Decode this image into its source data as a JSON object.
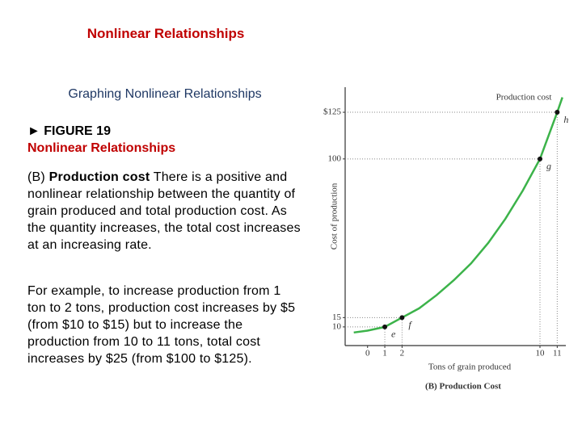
{
  "header": {
    "title": "Nonlinear Relationships",
    "subtitle": "Graphing Nonlinear Relationships"
  },
  "figure": {
    "label": "► FIGURE 19",
    "name": "Nonlinear Relationships"
  },
  "paragraphs": [
    {
      "lead": "(B)",
      "bold": "Production cost",
      "text": "There is a positive and nonlinear relationship between the quantity of grain produced and total production cost. As the quantity increases, the total cost increases at an increasing rate."
    },
    {
      "text": "For example, to increase production from 1 ton to 2 tons, production cost increases by $5 (from $10 to $15) but to increase the production from 10 to 11 tons, total cost increases by $25 (from $100 to $125)."
    }
  ],
  "chart_data": {
    "type": "line",
    "title": "Production cost",
    "caption": "(B) Production Cost",
    "x_label": "Tons of grain produced",
    "y_label": "Cost of production",
    "xlim": [
      -1.3,
      11.5
    ],
    "ylim": [
      0,
      138
    ],
    "xticks": [
      0,
      1,
      2,
      10,
      11
    ],
    "yticks": [
      10,
      15,
      100,
      {
        "value": 125,
        "label": "$125"
      }
    ],
    "x": [
      -0.8,
      0,
      1,
      2,
      3,
      4,
      5,
      6,
      7,
      8,
      9,
      10,
      11,
      11.3
    ],
    "series": [
      {
        "name": "Production cost",
        "color": "#3cb34a",
        "values": [
          7,
          8,
          10,
          15,
          20,
          27,
          35,
          44,
          55,
          68,
          83,
          100,
          125,
          133
        ]
      }
    ],
    "points": {
      "labels": [
        "e",
        "f",
        "g",
        "h"
      ],
      "x": [
        1,
        2,
        10,
        11
      ],
      "values": [
        10,
        15,
        100,
        125
      ],
      "color": "#111111"
    }
  }
}
